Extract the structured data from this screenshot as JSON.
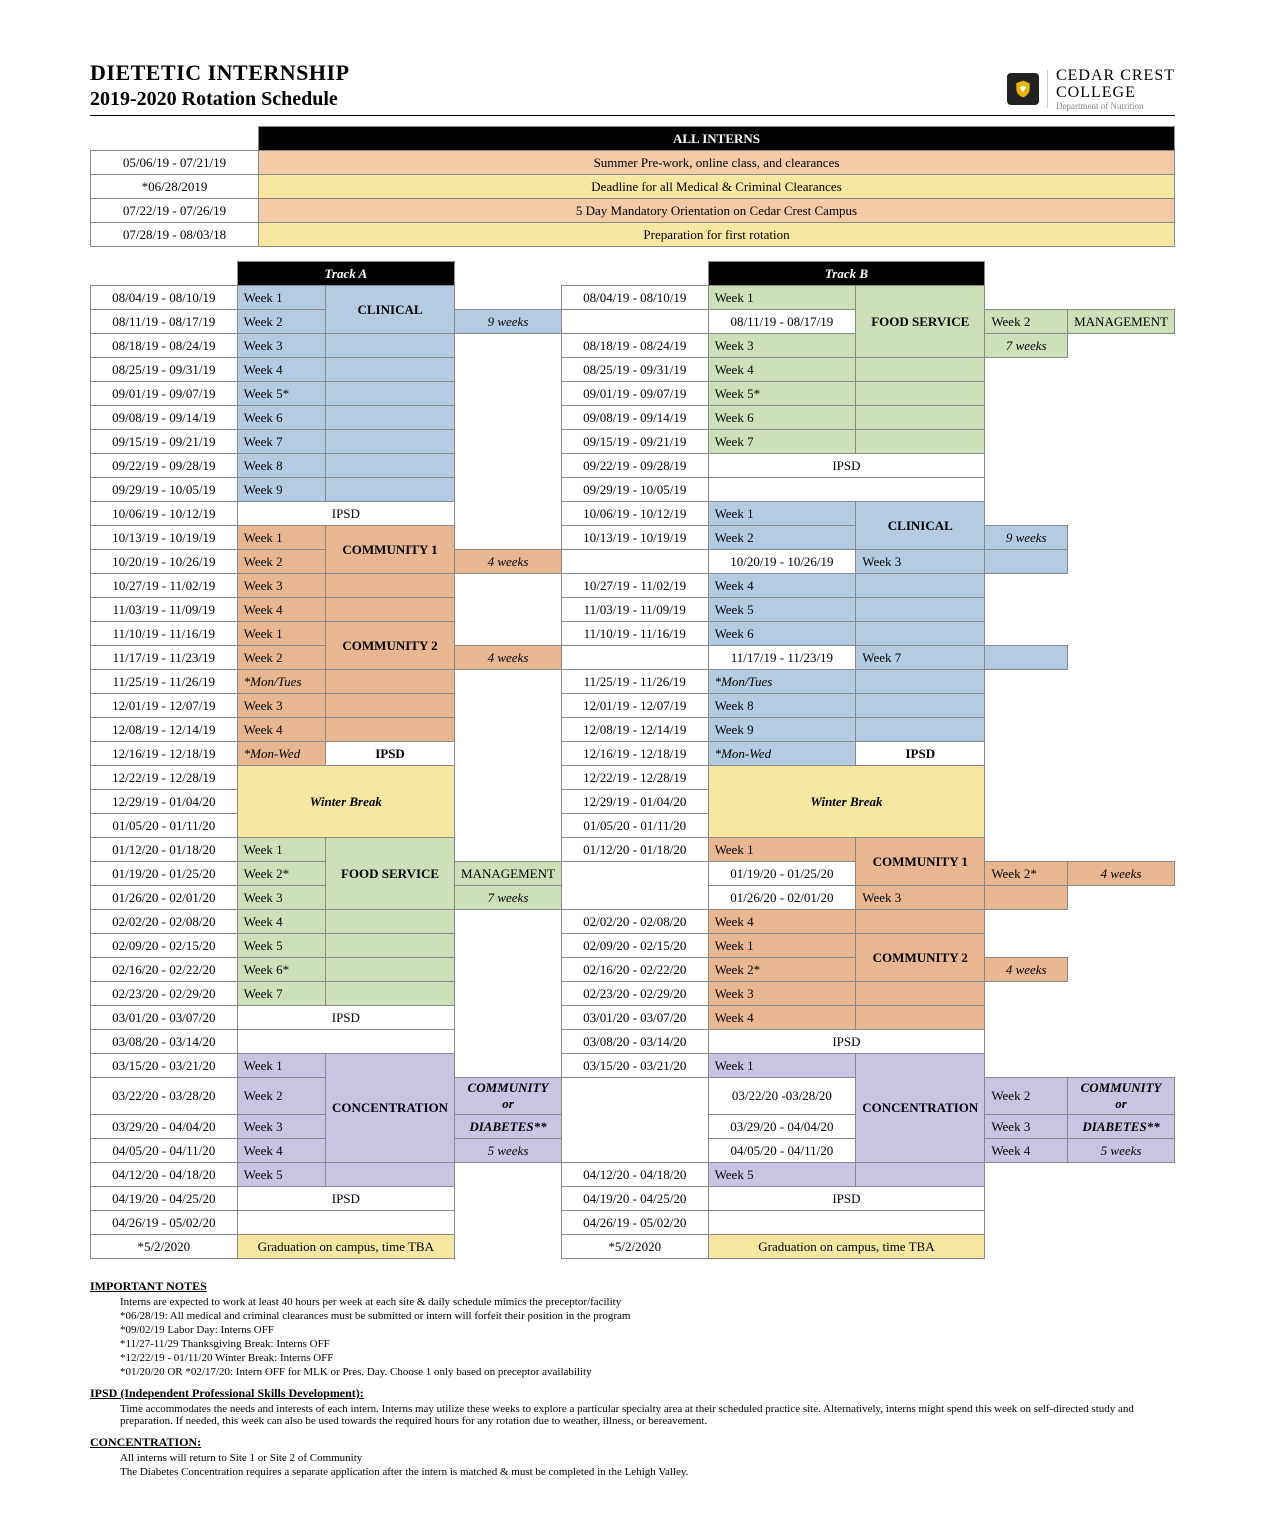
{
  "header": {
    "title1": "DIETETIC INTERNSHIP",
    "title2": "2019-2020 Rotation Schedule",
    "college1": "CEDAR CREST",
    "college2": "COLLEGE",
    "dept": "Department of Nutrition"
  },
  "all_interns_label": "ALL INTERNS",
  "intro_rows": [
    {
      "date": "05/06/19 - 07/21/19",
      "text": "Summer Pre-work, online class, and clearances",
      "bg": "peach"
    },
    {
      "date": "*06/28/2019",
      "text": "Deadline for all Medical & Criminal Clearances",
      "bg": "yellow"
    },
    {
      "date": "07/22/19 - 07/26/19",
      "text": "5 Day Mandatory Orientation on Cedar Crest Campus",
      "bg": "peach"
    },
    {
      "date": "07/28/19 - 08/03/18",
      "text": "Preparation for first rotation",
      "bg": "yellow"
    }
  ],
  "trackA_label": "Track A",
  "trackB_label": "Track B",
  "colors": {
    "clinical": "blue",
    "community": "orange",
    "foodservice": "green",
    "ipsd": "white",
    "winter": "yellow",
    "concentration": "purple",
    "grad": "yellow"
  },
  "dates": [
    "08/04/19 - 08/10/19",
    "08/11/19 - 08/17/19",
    "08/18/19 - 08/24/19",
    "08/25/19 - 09/31/19",
    "09/01/19 - 09/07/19",
    "09/08/19 - 09/14/19",
    "09/15/19 - 09/21/19",
    "09/22/19 - 09/28/19",
    "09/29/19 - 10/05/19",
    "10/06/19 - 10/12/19",
    "10/13/19 - 10/19/19",
    "10/20/19 - 10/26/19",
    "10/27/19 - 11/02/19",
    "11/03/19 - 11/09/19",
    "11/10/19 - 11/16/19",
    "11/17/19 - 11/23/19",
    "11/25/19 - 11/26/19",
    "12/01/19 - 12/07/19",
    "12/08/19 - 12/14/19",
    "12/16/19 - 12/18/19",
    "12/22/19 - 12/28/19",
    "12/29/19 - 01/04/20",
    "01/05/20 - 01/11/20",
    "01/12/20 - 01/18/20",
    "01/19/20 - 01/25/20",
    "01/26/20 - 02/01/20",
    "02/02/20 - 02/08/20",
    "02/09/20 - 02/15/20",
    "02/16/20 - 02/22/20",
    "02/23/20 - 02/29/20",
    "03/01/20 - 03/07/20",
    "03/08/20 - 03/14/20",
    "03/15/20 - 03/21/20",
    "03/22/20 - 03/28/20",
    "03/29/20 - 04/04/20",
    "04/05/20 - 04/11/20",
    "04/12/20 - 04/18/20",
    "04/19/20 - 04/25/20",
    "04/26/19 - 05/02/20",
    "*5/2/2020"
  ],
  "datesB": [
    "08/04/19 - 08/10/19",
    "08/11/19 - 08/17/19",
    "08/18/19 - 08/24/19",
    "08/25/19 - 09/31/19",
    "09/01/19 - 09/07/19",
    "09/08/19 - 09/14/19",
    "09/15/19 - 09/21/19",
    "09/22/19 - 09/28/19",
    "09/29/19 - 10/05/19",
    "10/06/19 - 10/12/19",
    "10/13/19 - 10/19/19",
    "10/20/19 - 10/26/19",
    "10/27/19 - 11/02/19",
    "11/03/19 - 11/09/19",
    "11/10/19 - 11/16/19",
    "11/17/19 - 11/23/19",
    "11/25/19 - 11/26/19",
    "12/01/19 - 12/07/19",
    "12/08/19 - 12/14/19",
    "12/16/19 - 12/18/19",
    "12/22/19 - 12/28/19",
    "12/29/19 - 01/04/20",
    "01/05/20 - 01/11/20",
    "01/12/20 - 01/18/20",
    "01/19/20 - 01/25/20",
    "01/26/20 - 02/01/20",
    "02/02/20 - 02/08/20",
    "02/09/20 - 02/15/20",
    "02/16/20 - 02/22/20",
    "02/23/20 - 02/29/20",
    "03/01/20 - 03/07/20",
    "03/08/20 - 03/14/20",
    "03/15/20 - 03/21/20",
    "03/22/20 -03/28/20",
    "03/29/20 - 04/04/20",
    "04/05/20 - 04/11/20",
    "04/12/20 - 04/18/20",
    "04/19/20 - 04/25/20",
    "04/26/19 - 05/02/20",
    "*5/2/2020"
  ],
  "trackA": {
    "blocks": [
      {
        "weeks": [
          "Week 1",
          "Week 2",
          "Week 3",
          "Week 4",
          "Week 5*",
          "Week 6",
          "Week 7",
          "Week 8",
          "Week 9"
        ],
        "color": "blue",
        "title": "CLINICAL",
        "sub": "9 weeks",
        "sub_italic": true,
        "title_rows": 2
      },
      {
        "span": 1,
        "color": "white",
        "title": "IPSD",
        "full": true
      },
      {
        "weeks": [
          "Week 1",
          "Week 2",
          "Week 3",
          "Week 4"
        ],
        "color": "orange",
        "title": "COMMUNITY 1",
        "sub": "4 weeks",
        "sub_italic": true,
        "title_rows": 2
      },
      {
        "weeks": [
          "Week 1",
          "Week 2",
          "*Mon/Tues",
          "Week 3",
          "Week 4"
        ],
        "color": "orange",
        "title": "COMMUNITY 2",
        "sub": "4 weeks",
        "sub_italic": true,
        "title_rows": 2,
        "week_italic": [
          2
        ]
      },
      {
        "weeks": [
          "*Mon-Wed"
        ],
        "color": "white",
        "title": "IPSD",
        "week_italic": [
          0
        ],
        "week_color": "orange",
        "title_rows": 1
      },
      {
        "span": 3,
        "color": "yellow",
        "title": "Winter Break",
        "italic": true,
        "bold": true,
        "full": true
      },
      {
        "weeks": [
          "Week 1",
          "Week 2*",
          "Week 3",
          "Week 4",
          "Week 5",
          "Week 6*",
          "Week 7"
        ],
        "color": "green",
        "title": "FOOD SERVICE",
        "sub": "MANAGEMENT",
        "sub2": "7 weeks",
        "sub2_italic": true,
        "title_rows": 3
      },
      {
        "span": 1,
        "color": "white",
        "title": "IPSD",
        "full": true
      },
      {
        "span": 1,
        "color": "white",
        "title": "",
        "full": true,
        "noborder": false,
        "empty": true
      },
      {
        "weeks": [
          "Week 1",
          "Week 2",
          "Week 3",
          "Week 4",
          "Week 5"
        ],
        "color": "purple",
        "title": "CONCENTRATION",
        "sub": "COMMUNITY  or",
        "sub_italic": true,
        "sub_bold": true,
        "sub2": "DIABETES**",
        "sub2_italic": true,
        "sub2_bold": true,
        "sub3": "5 weeks",
        "sub3_italic": true,
        "title_rows": 4
      },
      {
        "span": 1,
        "color": "white",
        "title": "IPSD",
        "full": true
      },
      {
        "span": 1,
        "color": "white",
        "title": "",
        "full": true,
        "empty": true
      },
      {
        "span": 1,
        "color": "yellow",
        "title": "Graduation on campus, time TBA",
        "full": true,
        "nocenter": true
      }
    ]
  },
  "trackB": {
    "blocks": [
      {
        "weeks": [
          "Week 1",
          "Week 2",
          "Week 3",
          "Week 4",
          "Week 5*",
          "Week 6",
          "Week 7"
        ],
        "color": "green",
        "title": "FOOD SERVICE",
        "sub": "MANAGEMENT",
        "sub2": "7 weeks",
        "sub2_italic": true,
        "title_rows": 3
      },
      {
        "span": 1,
        "color": "white",
        "title": "IPSD",
        "full": true
      },
      {
        "span": 1,
        "color": "white",
        "title": "",
        "full": true,
        "empty": true
      },
      {
        "weeks": [
          "Week 1",
          "Week 2",
          "Week 3",
          "Week 4",
          "Week 5",
          "Week 6",
          "Week 7",
          "*Mon/Tues",
          "Week 8",
          "Week 9"
        ],
        "color": "blue",
        "title": "CLINICAL",
        "sub": "9 weeks",
        "sub_italic": true,
        "title_rows": 2,
        "week_italic": [
          7
        ]
      },
      {
        "weeks": [
          "*Mon-Wed"
        ],
        "color": "white",
        "title": "IPSD",
        "week_italic": [
          0
        ],
        "week_color": "blue",
        "title_rows": 1
      },
      {
        "span": 3,
        "color": "yellow",
        "title": "Winter Break",
        "italic": true,
        "bold": true,
        "full": true
      },
      {
        "weeks": [
          "Week 1",
          "Week 2*",
          "Week 3",
          "Week 4"
        ],
        "color": "orange",
        "title": "COMMUNITY 1",
        "sub": "4 weeks",
        "sub_italic": true,
        "title_rows": 2
      },
      {
        "weeks": [
          "Week 1",
          "Week 2*",
          "Week 3",
          "Week 4"
        ],
        "color": "orange",
        "title": "COMMUNITY 2",
        "sub": "4 weeks",
        "sub_italic": true,
        "title_rows": 2
      },
      {
        "span": 1,
        "color": "white",
        "title": "IPSD",
        "full": true
      },
      {
        "weeks": [
          "Week 1",
          "Week 2",
          "Week 3",
          "Week 4",
          "Week 5"
        ],
        "color": "purple",
        "title": "CONCENTRATION",
        "sub": "COMMUNITY or",
        "sub_italic": true,
        "sub_bold": true,
        "sub2": "DIABETES**",
        "sub2_italic": true,
        "sub2_bold": true,
        "sub3": "5 weeks",
        "sub3_italic": true,
        "title_rows": 4
      },
      {
        "span": 1,
        "color": "white",
        "title": "IPSD",
        "full": true
      },
      {
        "span": 1,
        "color": "white",
        "title": "",
        "full": true,
        "empty": true
      },
      {
        "span": 1,
        "color": "yellow",
        "title": "Graduation on campus, time TBA",
        "full": true,
        "nocenter": true
      }
    ]
  },
  "notes": {
    "h1": "IMPORTANT NOTES",
    "p1": [
      "Interns are expected to work at least 40 hours per week at each site & daily schedule mimics the preceptor/facility",
      "*06/28/19: All medical and criminal clearances must be submitted or intern will forfeit their position in the program",
      "*09/02/19 Labor Day: Interns OFF",
      "*11/27-11/29 Thanksgiving Break: Interns OFF",
      "*12/22/19 - 01/11/20 Winter Break: Interns OFF",
      "*01/20/20 OR *02/17/20: Intern OFF for MLK or Pres. Day. Choose 1 only based on preceptor availability"
    ],
    "h2": "IPSD (Independent Professional Skills Development):",
    "p2": [
      "Time accommodates the needs and interests of each intern. Interns may utilize these weeks to explore a particular specialty area at their scheduled practice site. Alternatively, interns might spend this week on self-directed study and preparation. If needed, this week can also be used towards the required hours for any rotation due to weather, illness, or bereavement."
    ],
    "h3": "CONCENTRATION:",
    "p3": [
      "All interns will return to Site 1 or Site 2 of Community",
      "The Diabetes Concentration requires a separate application after the intern is matched & must be completed in the Lehigh Valley."
    ]
  }
}
